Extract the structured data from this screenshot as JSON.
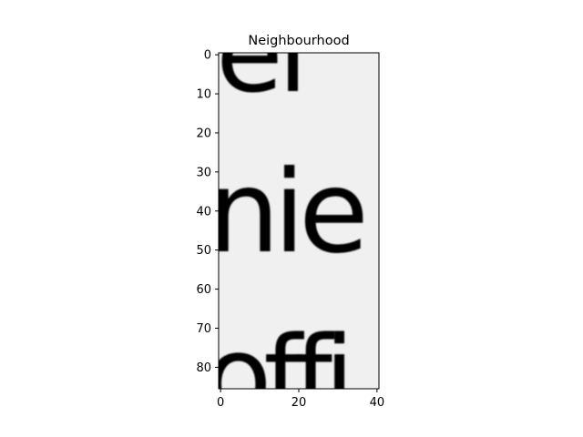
{
  "chart_data": {
    "type": "heatmap",
    "title": "Neighbourhood",
    "xlabel": "",
    "ylabel": "",
    "x_ticks": [
      0,
      20,
      40
    ],
    "y_ticks": [
      0,
      10,
      20,
      30,
      40,
      50,
      60,
      70,
      80
    ],
    "xlim": [
      -0.5,
      40.5
    ],
    "ylim": [
      85.5,
      -0.5
    ],
    "colormap": "gray",
    "grid": false,
    "image_content": "grayscale crop of scanned serif text",
    "background_color": "#f0f0f0",
    "ink_color": "#1e1e1e"
  }
}
